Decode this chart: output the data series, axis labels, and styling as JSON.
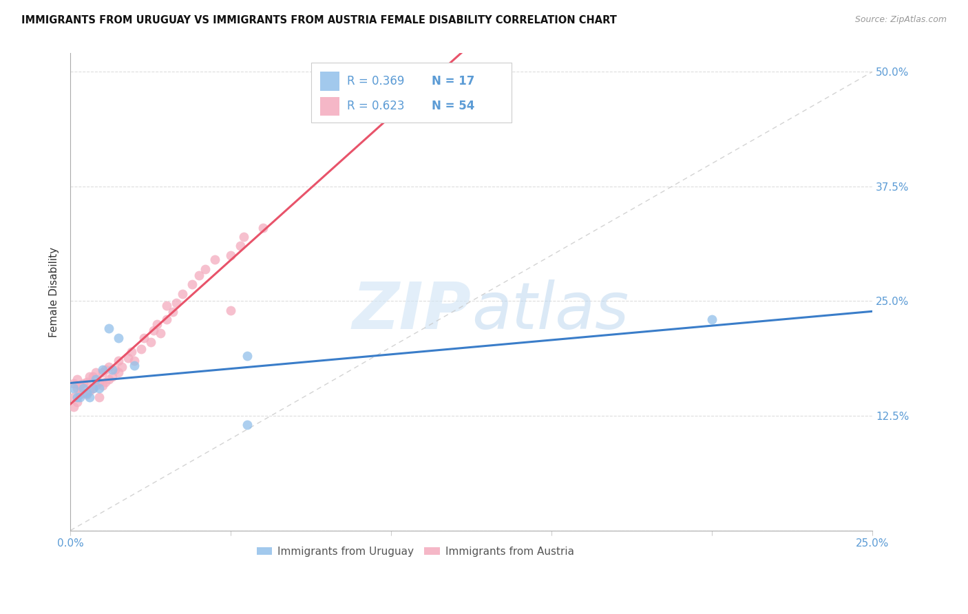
{
  "title": "IMMIGRANTS FROM URUGUAY VS IMMIGRANTS FROM AUSTRIA FEMALE DISABILITY CORRELATION CHART",
  "source": "Source: ZipAtlas.com",
  "xmin": 0.0,
  "xmax": 0.25,
  "ymin": 0.0,
  "ymax": 0.52,
  "xtick_vals": [
    0.0,
    0.05,
    0.1,
    0.15,
    0.2,
    0.25
  ],
  "xtick_labels": [
    "0.0%",
    "",
    "",
    "",
    "",
    "25.0%"
  ],
  "ytick_vals": [
    0.0,
    0.125,
    0.25,
    0.375,
    0.5
  ],
  "ytick_labels": [
    "",
    "12.5%",
    "25.0%",
    "37.5%",
    "50.0%"
  ],
  "watermark": "ZIPatlas",
  "legend_uruguay": "Immigrants from Uruguay",
  "legend_austria": "Immigrants from Austria",
  "r_uruguay": "0.369",
  "n_uruguay": "17",
  "r_austria": "0.623",
  "n_austria": "54",
  "color_uruguay": "#92C0EA",
  "color_austria": "#F4ABBE",
  "color_trendline_uruguay": "#3A7DC9",
  "color_trendline_austria": "#E8536A",
  "color_diagonal": "#C8C8C8",
  "color_axis_labels": "#5B9BD5",
  "color_grid": "#DDDDDD",
  "color_legend_text": "#5B9BD5",
  "uruguay_x": [
    0.001,
    0.002,
    0.003,
    0.004,
    0.005,
    0.006,
    0.007,
    0.008,
    0.009,
    0.01,
    0.012,
    0.013,
    0.015,
    0.02,
    0.055,
    0.055,
    0.2
  ],
  "uruguay_y": [
    0.155,
    0.145,
    0.145,
    0.155,
    0.15,
    0.145,
    0.155,
    0.165,
    0.155,
    0.175,
    0.22,
    0.175,
    0.21,
    0.18,
    0.19,
    0.115,
    0.23
  ],
  "austria_x": [
    0.001,
    0.001,
    0.001,
    0.002,
    0.002,
    0.002,
    0.003,
    0.003,
    0.004,
    0.004,
    0.005,
    0.005,
    0.006,
    0.006,
    0.007,
    0.007,
    0.008,
    0.008,
    0.009,
    0.009,
    0.01,
    0.01,
    0.011,
    0.011,
    0.012,
    0.012,
    0.013,
    0.014,
    0.015,
    0.015,
    0.016,
    0.018,
    0.019,
    0.02,
    0.022,
    0.023,
    0.025,
    0.026,
    0.027,
    0.028,
    0.03,
    0.03,
    0.032,
    0.033,
    0.035,
    0.038,
    0.04,
    0.042,
    0.045,
    0.05,
    0.05,
    0.053,
    0.054,
    0.06
  ],
  "austria_y": [
    0.135,
    0.145,
    0.16,
    0.14,
    0.155,
    0.165,
    0.148,
    0.158,
    0.15,
    0.16,
    0.148,
    0.162,
    0.152,
    0.168,
    0.155,
    0.168,
    0.158,
    0.172,
    0.145,
    0.162,
    0.158,
    0.172,
    0.162,
    0.175,
    0.165,
    0.178,
    0.168,
    0.175,
    0.172,
    0.185,
    0.178,
    0.188,
    0.195,
    0.185,
    0.198,
    0.21,
    0.205,
    0.218,
    0.225,
    0.215,
    0.23,
    0.245,
    0.238,
    0.248,
    0.258,
    0.268,
    0.278,
    0.285,
    0.295,
    0.3,
    0.24,
    0.31,
    0.32,
    0.33
  ]
}
